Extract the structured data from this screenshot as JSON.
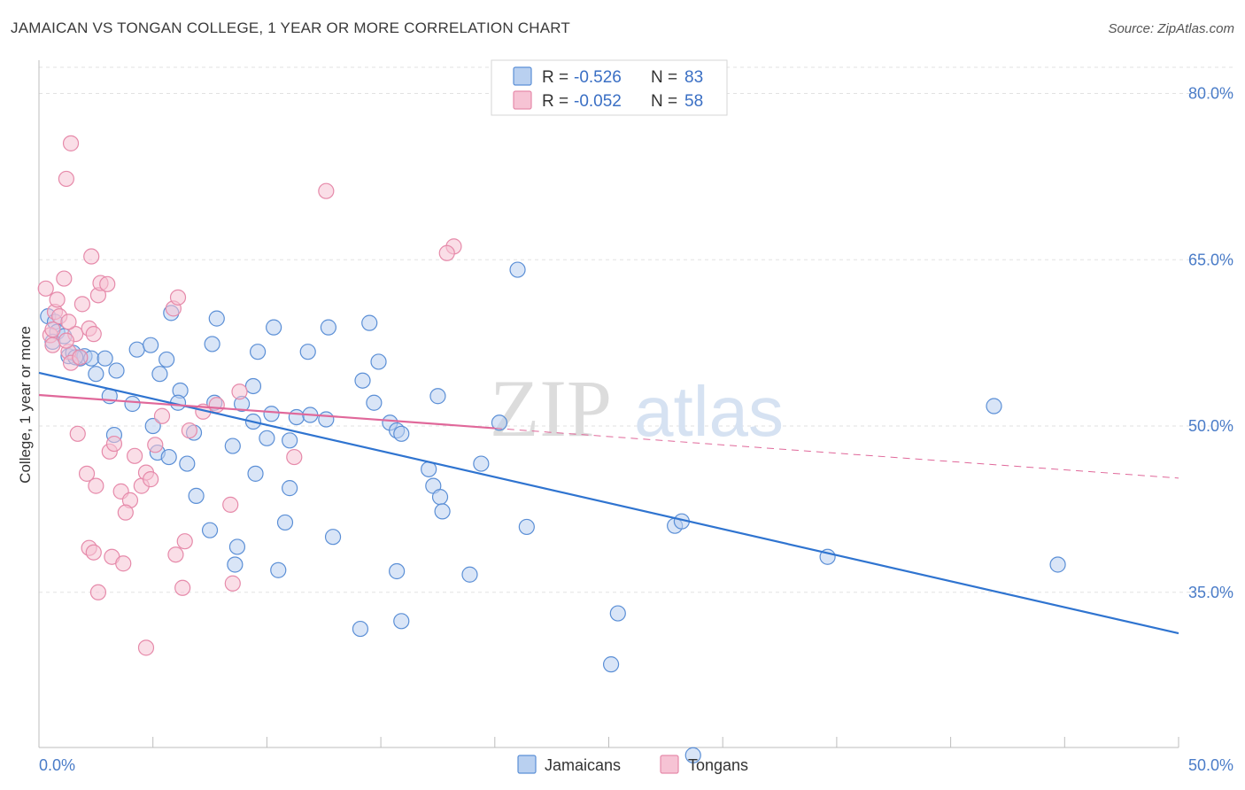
{
  "title": "JAMAICAN VS TONGAN COLLEGE, 1 YEAR OR MORE CORRELATION CHART",
  "source": "Source: ZipAtlas.com",
  "watermark": {
    "part1": "ZIP",
    "part2": "atlas"
  },
  "colors": {
    "blue": "#5b8fd6",
    "blue_fill": "#b9d0f0",
    "blue_line": "#2f74d0",
    "pink": "#e68aaa",
    "pink_fill": "#f6c3d4",
    "pink_line": "#e0689a"
  },
  "legend": {
    "r_label": "R =",
    "n_label": "N =",
    "rows": [
      {
        "r": "-0.526",
        "n": "83"
      },
      {
        "r": "-0.052",
        "n": "58"
      }
    ]
  },
  "bottom_legend": [
    "Jamaicans",
    "Tongans"
  ],
  "chart_data": {
    "type": "scatter",
    "title": "JAMAICAN VS TONGAN COLLEGE, 1 YEAR OR MORE CORRELATION CHART",
    "xlabel": "",
    "ylabel": "College, 1 year or more",
    "xlim": [
      0,
      50
    ],
    "ylim": [
      21,
      83
    ],
    "x_tick_labels": [
      "0.0%",
      "50.0%"
    ],
    "y_ticks": [
      35,
      50,
      65,
      80
    ],
    "y_tick_labels": [
      "35.0%",
      "50.0%",
      "65.0%",
      "80.0%"
    ],
    "grid": true,
    "legend_position": "top-center",
    "series": [
      {
        "name": "Jamaicans",
        "r": -0.526,
        "n": 83,
        "trend": {
          "x": [
            0,
            50
          ],
          "y": [
            54.8,
            31.3
          ]
        },
        "points": [
          [
            0.4,
            59.9
          ],
          [
            0.7,
            59.4
          ],
          [
            0.8,
            58.5
          ],
          [
            0.6,
            57.6
          ],
          [
            1.1,
            58.1
          ],
          [
            1.3,
            56.3
          ],
          [
            1.5,
            56.6
          ],
          [
            1.8,
            56.1
          ],
          [
            2.0,
            56.3
          ],
          [
            2.3,
            56.1
          ],
          [
            2.9,
            56.1
          ],
          [
            2.5,
            54.7
          ],
          [
            3.4,
            55.0
          ],
          [
            3.1,
            52.7
          ],
          [
            4.1,
            52.0
          ],
          [
            4.3,
            56.9
          ],
          [
            4.9,
            57.3
          ],
          [
            5.3,
            54.7
          ],
          [
            5.6,
            56.0
          ],
          [
            5.8,
            60.2
          ],
          [
            6.2,
            53.2
          ],
          [
            6.1,
            52.1
          ],
          [
            7.7,
            52.1
          ],
          [
            8.9,
            52.0
          ],
          [
            7.6,
            57.4
          ],
          [
            7.8,
            59.7
          ],
          [
            9.4,
            53.6
          ],
          [
            9.6,
            56.7
          ],
          [
            10.3,
            58.9
          ],
          [
            11.8,
            56.7
          ],
          [
            12.7,
            58.9
          ],
          [
            14.5,
            59.3
          ],
          [
            14.9,
            55.8
          ],
          [
            14.2,
            54.1
          ],
          [
            14.7,
            52.1
          ],
          [
            17.5,
            52.7
          ],
          [
            10.2,
            51.1
          ],
          [
            11.3,
            50.8
          ],
          [
            11.9,
            51.0
          ],
          [
            12.6,
            50.6
          ],
          [
            11.0,
            48.7
          ],
          [
            10.0,
            48.9
          ],
          [
            9.4,
            50.4
          ],
          [
            8.5,
            48.2
          ],
          [
            6.8,
            49.4
          ],
          [
            5.0,
            50.0
          ],
          [
            3.3,
            49.2
          ],
          [
            5.2,
            47.6
          ],
          [
            5.7,
            47.2
          ],
          [
            6.5,
            46.6
          ],
          [
            9.5,
            45.7
          ],
          [
            11.0,
            44.4
          ],
          [
            6.9,
            43.7
          ],
          [
            7.5,
            40.6
          ],
          [
            8.7,
            39.1
          ],
          [
            8.6,
            37.5
          ],
          [
            10.5,
            37.0
          ],
          [
            10.8,
            41.3
          ],
          [
            12.9,
            40.0
          ],
          [
            15.4,
            50.3
          ],
          [
            15.7,
            49.6
          ],
          [
            15.9,
            49.3
          ],
          [
            17.1,
            46.1
          ],
          [
            17.3,
            44.6
          ],
          [
            17.6,
            43.6
          ],
          [
            19.4,
            46.6
          ],
          [
            20.2,
            50.3
          ],
          [
            21.0,
            64.1
          ],
          [
            15.7,
            36.9
          ],
          [
            18.9,
            36.6
          ],
          [
            17.7,
            42.3
          ],
          [
            21.4,
            40.9
          ],
          [
            27.9,
            41.0
          ],
          [
            28.2,
            41.4
          ],
          [
            34.6,
            38.2
          ],
          [
            41.9,
            51.8
          ],
          [
            44.7,
            37.5
          ],
          [
            14.1,
            31.7
          ],
          [
            15.9,
            32.4
          ],
          [
            25.4,
            33.1
          ],
          [
            25.1,
            28.5
          ],
          [
            28.7,
            20.3
          ],
          [
            1.6,
            56.2
          ]
        ]
      },
      {
        "name": "Tongans",
        "r": -0.052,
        "n": 58,
        "trend": {
          "x": [
            0,
            20
          ],
          "y": [
            52.8,
            49.8
          ]
        },
        "trend_ext": {
          "x": [
            20,
            50
          ],
          "y": [
            49.8,
            45.3
          ]
        },
        "points": [
          [
            0.3,
            62.4
          ],
          [
            0.5,
            58.2
          ],
          [
            0.6,
            57.3
          ],
          [
            0.7,
            60.3
          ],
          [
            0.9,
            59.9
          ],
          [
            0.8,
            61.4
          ],
          [
            1.1,
            63.3
          ],
          [
            1.3,
            56.7
          ],
          [
            1.4,
            55.7
          ],
          [
            1.6,
            58.3
          ],
          [
            1.9,
            61.0
          ],
          [
            1.8,
            56.2
          ],
          [
            2.2,
            58.8
          ],
          [
            2.3,
            65.3
          ],
          [
            2.6,
            61.8
          ],
          [
            2.7,
            62.9
          ],
          [
            2.4,
            58.3
          ],
          [
            1.3,
            59.4
          ],
          [
            1.2,
            57.7
          ],
          [
            0.6,
            58.7
          ],
          [
            3.0,
            62.8
          ],
          [
            1.7,
            49.3
          ],
          [
            2.1,
            45.7
          ],
          [
            2.5,
            44.6
          ],
          [
            3.1,
            47.7
          ],
          [
            3.3,
            48.4
          ],
          [
            3.6,
            44.1
          ],
          [
            4.0,
            43.3
          ],
          [
            3.8,
            42.2
          ],
          [
            4.2,
            47.3
          ],
          [
            4.5,
            44.6
          ],
          [
            4.7,
            45.8
          ],
          [
            4.9,
            45.2
          ],
          [
            5.1,
            48.3
          ],
          [
            5.4,
            50.9
          ],
          [
            5.9,
            60.6
          ],
          [
            6.1,
            61.6
          ],
          [
            6.6,
            49.6
          ],
          [
            7.2,
            51.3
          ],
          [
            7.8,
            51.9
          ],
          [
            8.4,
            42.9
          ],
          [
            8.8,
            53.1
          ],
          [
            2.2,
            39.0
          ],
          [
            2.4,
            38.6
          ],
          [
            3.2,
            38.2
          ],
          [
            3.7,
            37.6
          ],
          [
            6.0,
            38.4
          ],
          [
            6.4,
            39.6
          ],
          [
            2.6,
            35.0
          ],
          [
            6.3,
            35.4
          ],
          [
            8.5,
            35.8
          ],
          [
            4.7,
            30.0
          ],
          [
            1.4,
            75.5
          ],
          [
            1.2,
            72.3
          ],
          [
            12.6,
            71.2
          ],
          [
            18.2,
            66.2
          ],
          [
            17.9,
            65.6
          ],
          [
            11.2,
            47.2
          ]
        ]
      }
    ]
  }
}
